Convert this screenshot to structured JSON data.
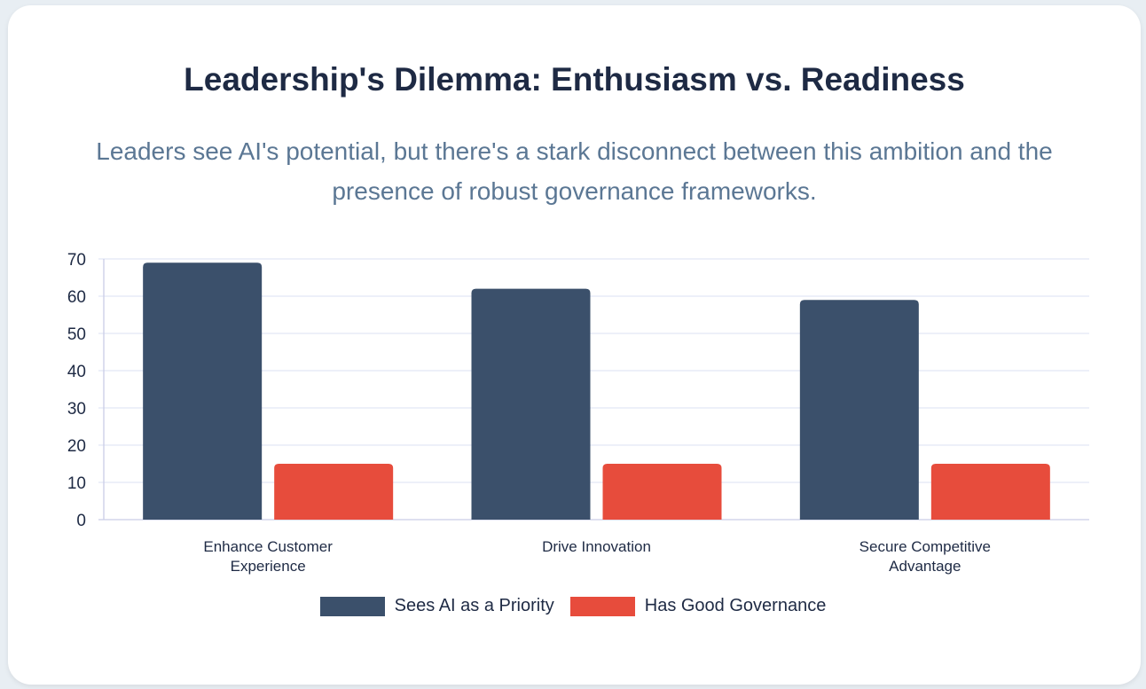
{
  "title": "Leadership's Dilemma: Enthusiasm vs. Readiness",
  "subtitle": "Leaders see AI's potential, but there's a stark disconnect between this ambition and the presence of robust governance frameworks.",
  "colors": {
    "priority": "#3b506b",
    "governance": "#e74c3c",
    "grid": "#e2e6f5",
    "axis": "#1e2a44"
  },
  "chart_data": {
    "type": "bar",
    "categories": [
      [
        "Enhance Customer",
        "Experience"
      ],
      [
        "Drive Innovation"
      ],
      [
        "Secure Competitive",
        "Advantage"
      ]
    ],
    "series": [
      {
        "name": "Sees AI as a Priority",
        "values": [
          69,
          62,
          59
        ]
      },
      {
        "name": "Has Good Governance",
        "values": [
          15,
          15,
          15
        ]
      }
    ],
    "ylim": [
      0,
      70
    ],
    "yticks": [
      0,
      10,
      20,
      30,
      40,
      50,
      60,
      70
    ],
    "grid": true,
    "legend": "bottom-center"
  }
}
